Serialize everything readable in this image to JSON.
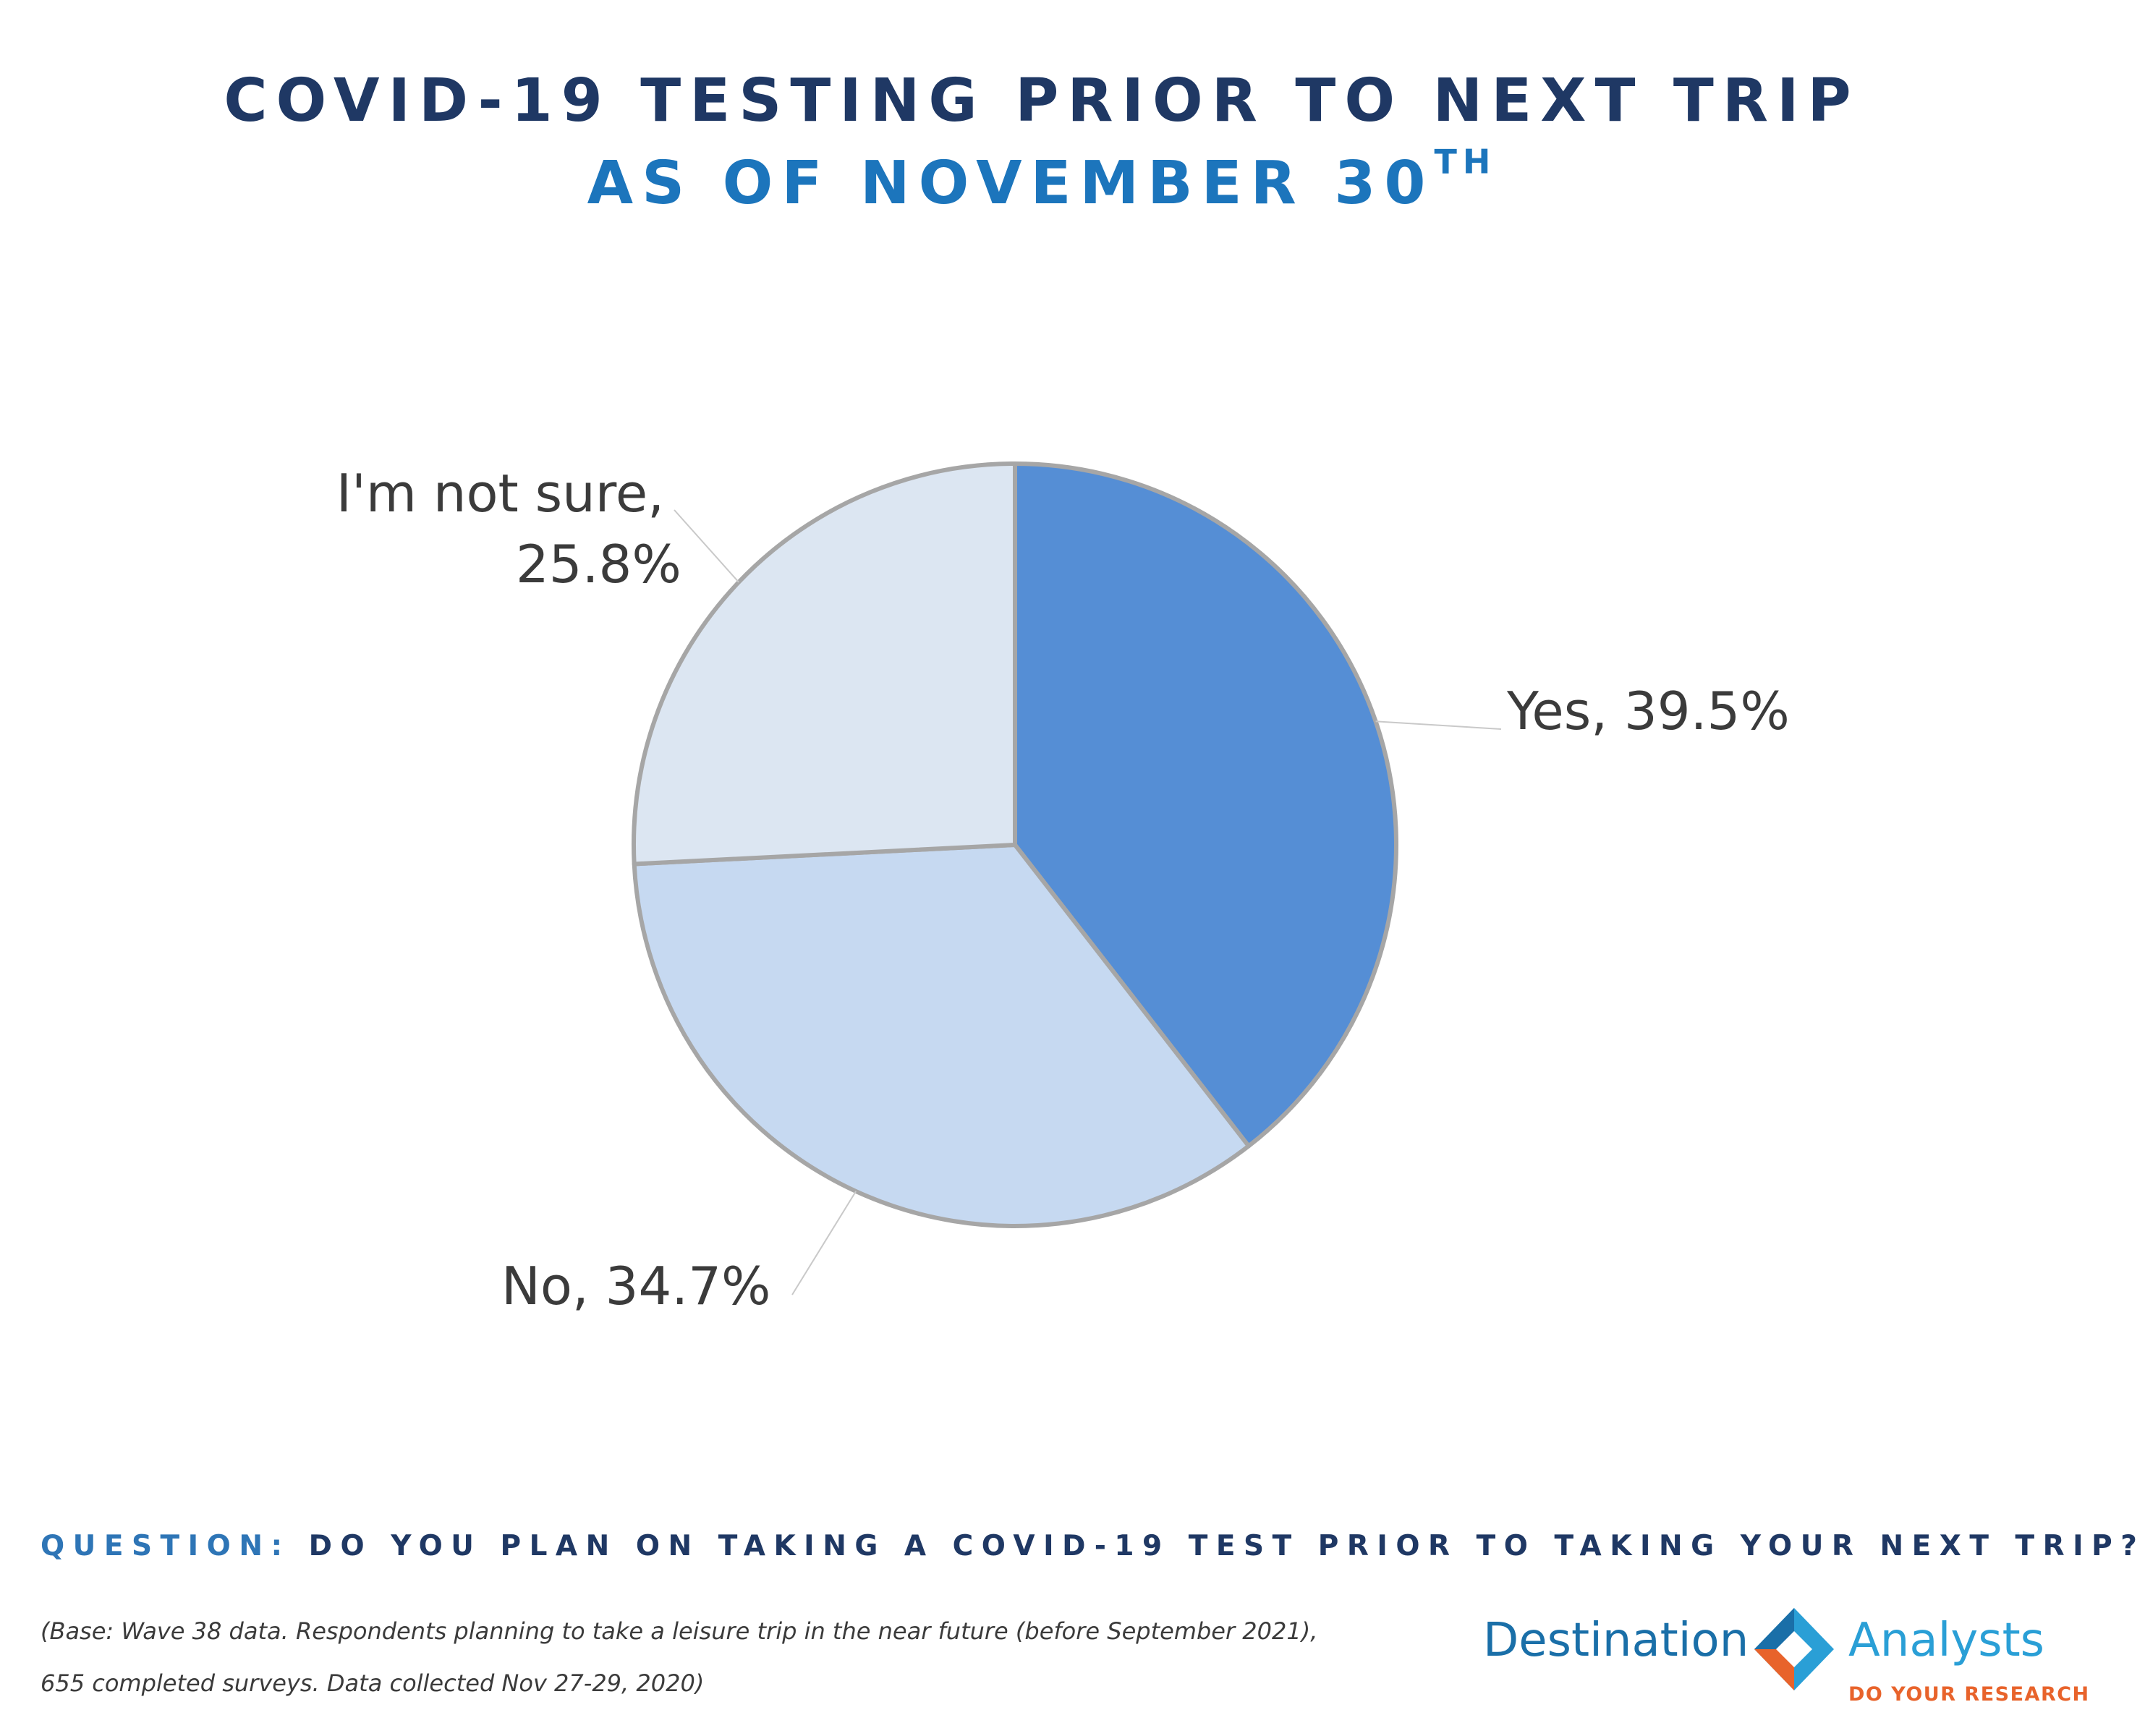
{
  "header": {
    "title": "COVID-19 TESTING PRIOR TO NEXT TRIP",
    "subtitle_main": "AS OF NOVEMBER 30",
    "subtitle_sup": "TH"
  },
  "chart_data": {
    "type": "pie",
    "start_angle_deg": 0,
    "direction": "clockwise",
    "slices": [
      {
        "label": "Yes",
        "value": 39.5,
        "label_text": "Yes, 39.5%",
        "color": "#558ed5"
      },
      {
        "label": "No",
        "value": 34.7,
        "label_text": "No, 34.7%",
        "color": "#c6d9f1"
      },
      {
        "label": "I'm not sure",
        "value": 25.8,
        "label_text_line1": "I'm not sure,",
        "label_text_line2": "25.8%",
        "color": "#dce6f2"
      }
    ],
    "slice_border_color": "#a6a6a6",
    "leader_line_color": "#c9c9c9"
  },
  "question": {
    "label": "QUESTION:",
    "text": "DO YOU PLAN ON TAKING A COVID-19 TEST PRIOR TO TAKING YOUR NEXT TRIP?"
  },
  "base_note": {
    "line1": "(Base: Wave 38 data. Respondents planning to take a leisure trip in the near future (before September 2021),",
    "line2": "655 completed surveys. Data collected Nov 27-29, 2020)"
  },
  "logo": {
    "word_left": "Destination",
    "word_right": "Analysts",
    "tagline": "DO YOUR RESEARCH",
    "colors": {
      "blue": "#2a9fd6",
      "dark_blue": "#1a6fa8",
      "orange": "#e8632b"
    }
  }
}
